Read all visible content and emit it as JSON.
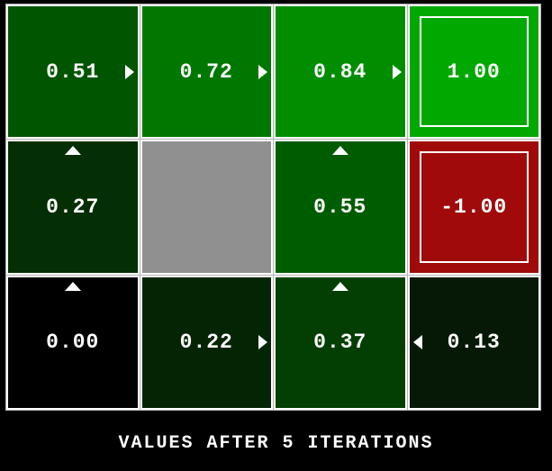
{
  "title": "VALUES AFTER 5 ITERATIONS",
  "colors": {
    "background": "#000000",
    "grid_border": "#ffffff",
    "grid_seam": "#b4b4b4",
    "text": "#ffffff",
    "wall": "#909090",
    "positive_exit": "#00A800",
    "negative_exit": "#A00A0A"
  },
  "grid": {
    "rows": 3,
    "cols": 4,
    "cells": [
      {
        "row": 0,
        "col": 0,
        "value": "0.51",
        "bg": "#005500",
        "arrow": "right",
        "type": "normal"
      },
      {
        "row": 0,
        "col": 1,
        "value": "0.72",
        "bg": "#007800",
        "arrow": "right",
        "type": "normal"
      },
      {
        "row": 0,
        "col": 2,
        "value": "0.84",
        "bg": "#008D00",
        "arrow": "right",
        "type": "normal"
      },
      {
        "row": 0,
        "col": 3,
        "value": "1.00",
        "bg": "#00A800",
        "arrow": null,
        "type": "exit"
      },
      {
        "row": 1,
        "col": 0,
        "value": "0.27",
        "bg": "#042E04",
        "arrow": "up",
        "type": "normal"
      },
      {
        "row": 1,
        "col": 1,
        "value": null,
        "bg": "#909090",
        "arrow": null,
        "type": "wall"
      },
      {
        "row": 1,
        "col": 2,
        "value": "0.55",
        "bg": "#005C00",
        "arrow": "up",
        "type": "normal"
      },
      {
        "row": 1,
        "col": 3,
        "value": "-1.00",
        "bg": "#A00A0A",
        "arrow": null,
        "type": "exit"
      },
      {
        "row": 2,
        "col": 0,
        "value": "0.00",
        "bg": "#000000",
        "arrow": "up",
        "type": "normal"
      },
      {
        "row": 2,
        "col": 1,
        "value": "0.22",
        "bg": "#032503",
        "arrow": "right",
        "type": "normal"
      },
      {
        "row": 2,
        "col": 2,
        "value": "0.37",
        "bg": "#033E03",
        "arrow": "up",
        "type": "normal"
      },
      {
        "row": 2,
        "col": 3,
        "value": "0.13",
        "bg": "#061806",
        "arrow": "left",
        "type": "normal"
      }
    ]
  }
}
